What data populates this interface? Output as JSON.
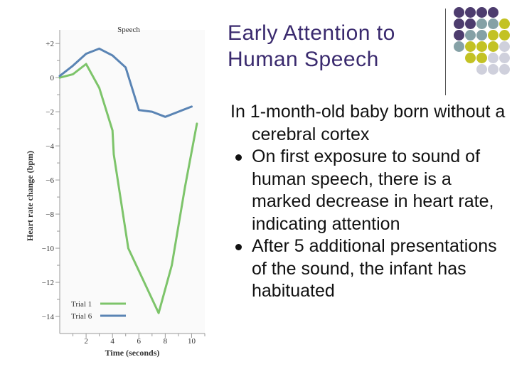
{
  "chart_data": {
    "type": "line",
    "title": "Speech",
    "xlabel": "Time (seconds)",
    "ylabel": "Heart rate change (bpm)",
    "xlim": [
      0,
      11
    ],
    "ylim": [
      -15,
      2.8
    ],
    "x_ticks": [
      2,
      4,
      6,
      8,
      10
    ],
    "x_tick_labels": [
      "2",
      "4",
      "6",
      "8",
      "10"
    ],
    "y_ticks": [
      2,
      0,
      -2,
      -4,
      -6,
      -8,
      -10,
      -12,
      -14
    ],
    "y_tick_labels": [
      "+2",
      "0",
      "−2",
      "−4",
      "−6",
      "−8",
      "−10",
      "−12",
      "−14"
    ],
    "legend_position": "bottom-left",
    "grid": false,
    "series": [
      {
        "name": "Trial 1",
        "color": "#7dc46a",
        "x": [
          0,
          1,
          2,
          3,
          4,
          4.1,
          5.2,
          7.5,
          8.5,
          9.5,
          10.4
        ],
        "y": [
          0,
          0.2,
          0.8,
          -0.6,
          -3.1,
          -4.5,
          -10.0,
          -13.8,
          -11.0,
          -6.4,
          -2.7
        ]
      },
      {
        "name": "Trial 6",
        "color": "#5a84b4",
        "x": [
          0,
          1,
          2,
          3,
          4,
          5,
          6,
          7,
          8,
          9,
          10
        ],
        "y": [
          0.1,
          0.7,
          1.4,
          1.7,
          1.3,
          0.6,
          -1.9,
          -2.0,
          -2.3,
          -2.0,
          -1.7
        ]
      }
    ]
  },
  "slide": {
    "title_line1": "Early Attention to",
    "title_line2": "Human Speech",
    "intro": "In 1-month-old baby born without a cerebral cortex",
    "bullets": [
      "On first exposure to sound of human speech, there is a marked decrease in heart rate, indicating attention",
      "After 5 additional presentations of the sound, the infant has habituated"
    ]
  },
  "decor": {
    "dot_grid": [
      [
        "#4d3c6e",
        "#4d3c6e",
        "#4d3c6e",
        "#4d3c6e",
        ""
      ],
      [
        "#4d3c6e",
        "#4d3c6e",
        "#85a1a6",
        "#85a1a6",
        "#c3c224"
      ],
      [
        "#4d3c6e",
        "#85a1a6",
        "#85a1a6",
        "#c3c224",
        "#c3c224"
      ],
      [
        "#85a1a6",
        "#c3c224",
        "#c3c224",
        "#c3c224",
        "#cfd0dc"
      ],
      [
        "",
        "#c3c224",
        "#c3c224",
        "#cfd0dc",
        "#cfd0dc"
      ],
      [
        "",
        "",
        "#cfd0dc",
        "#cfd0dc",
        "#cfd0dc"
      ]
    ]
  }
}
